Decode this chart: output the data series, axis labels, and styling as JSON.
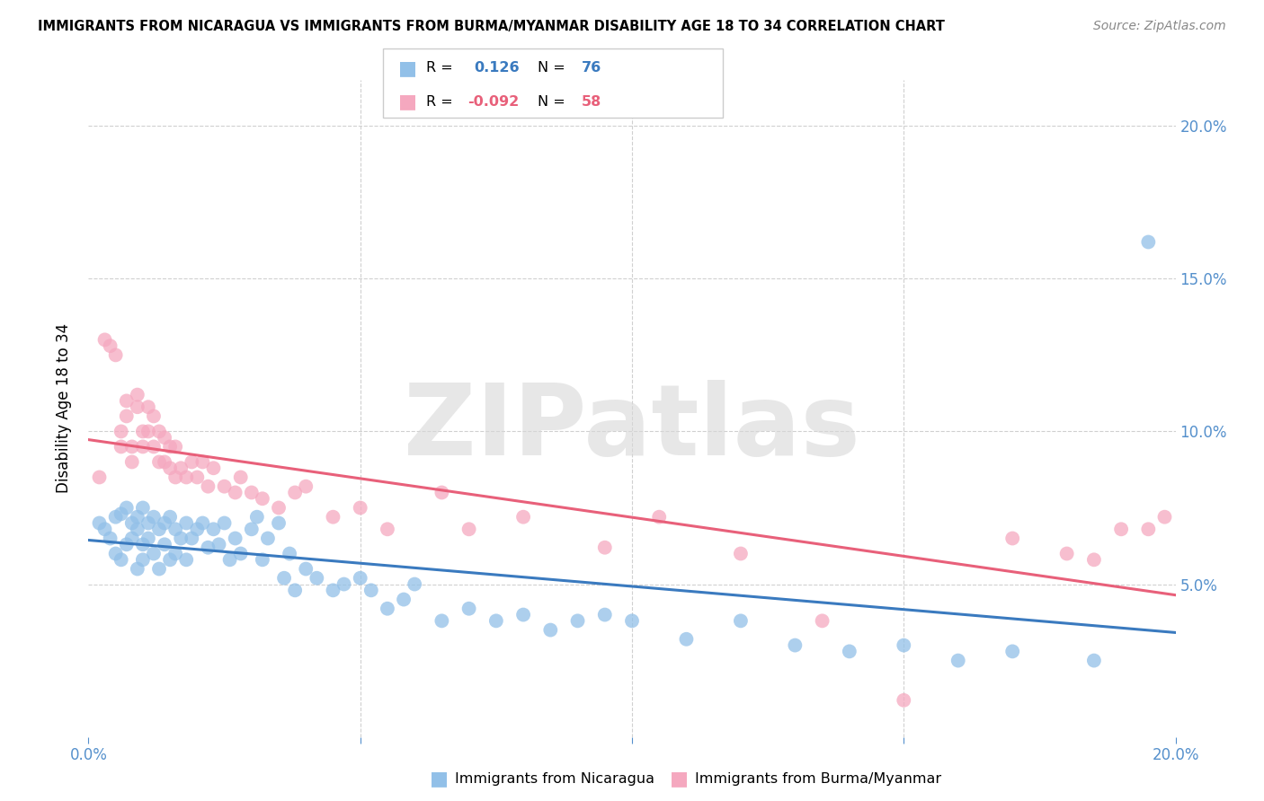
{
  "title": "IMMIGRANTS FROM NICARAGUA VS IMMIGRANTS FROM BURMA/MYANMAR DISABILITY AGE 18 TO 34 CORRELATION CHART",
  "source": "Source: ZipAtlas.com",
  "ylabel": "Disability Age 18 to 34",
  "xlim": [
    0.0,
    0.2
  ],
  "ylim": [
    0.0,
    0.215
  ],
  "blue_color": "#92c0e8",
  "pink_color": "#f5a8bf",
  "blue_line_color": "#3a7abf",
  "pink_line_color": "#e8607a",
  "label_nicaragua": "Immigrants from Nicaragua",
  "label_burma": "Immigrants from Burma/Myanmar",
  "watermark": "ZIPatlas",
  "blue_R": 0.126,
  "blue_N": 76,
  "pink_R": -0.092,
  "pink_N": 58,
  "blue_scatter_x": [
    0.002,
    0.003,
    0.004,
    0.005,
    0.005,
    0.006,
    0.006,
    0.007,
    0.007,
    0.008,
    0.008,
    0.009,
    0.009,
    0.009,
    0.01,
    0.01,
    0.01,
    0.011,
    0.011,
    0.012,
    0.012,
    0.013,
    0.013,
    0.014,
    0.014,
    0.015,
    0.015,
    0.016,
    0.016,
    0.017,
    0.018,
    0.018,
    0.019,
    0.02,
    0.021,
    0.022,
    0.023,
    0.024,
    0.025,
    0.026,
    0.027,
    0.028,
    0.03,
    0.031,
    0.032,
    0.033,
    0.035,
    0.036,
    0.037,
    0.038,
    0.04,
    0.042,
    0.045,
    0.047,
    0.05,
    0.052,
    0.055,
    0.058,
    0.06,
    0.065,
    0.07,
    0.075,
    0.08,
    0.085,
    0.09,
    0.095,
    0.1,
    0.11,
    0.12,
    0.13,
    0.14,
    0.15,
    0.16,
    0.17,
    0.185,
    0.195
  ],
  "blue_scatter_y": [
    0.07,
    0.068,
    0.065,
    0.072,
    0.06,
    0.073,
    0.058,
    0.075,
    0.063,
    0.07,
    0.065,
    0.068,
    0.055,
    0.072,
    0.075,
    0.063,
    0.058,
    0.07,
    0.065,
    0.072,
    0.06,
    0.068,
    0.055,
    0.07,
    0.063,
    0.072,
    0.058,
    0.068,
    0.06,
    0.065,
    0.07,
    0.058,
    0.065,
    0.068,
    0.07,
    0.062,
    0.068,
    0.063,
    0.07,
    0.058,
    0.065,
    0.06,
    0.068,
    0.072,
    0.058,
    0.065,
    0.07,
    0.052,
    0.06,
    0.048,
    0.055,
    0.052,
    0.048,
    0.05,
    0.052,
    0.048,
    0.042,
    0.045,
    0.05,
    0.038,
    0.042,
    0.038,
    0.04,
    0.035,
    0.038,
    0.04,
    0.038,
    0.032,
    0.038,
    0.03,
    0.028,
    0.03,
    0.025,
    0.028,
    0.025,
    0.162
  ],
  "pink_scatter_x": [
    0.002,
    0.003,
    0.004,
    0.005,
    0.006,
    0.006,
    0.007,
    0.007,
    0.008,
    0.008,
    0.009,
    0.009,
    0.01,
    0.01,
    0.011,
    0.011,
    0.012,
    0.012,
    0.013,
    0.013,
    0.014,
    0.014,
    0.015,
    0.015,
    0.016,
    0.016,
    0.017,
    0.018,
    0.019,
    0.02,
    0.021,
    0.022,
    0.023,
    0.025,
    0.027,
    0.028,
    0.03,
    0.032,
    0.035,
    0.038,
    0.04,
    0.045,
    0.05,
    0.055,
    0.065,
    0.07,
    0.08,
    0.095,
    0.105,
    0.12,
    0.135,
    0.15,
    0.17,
    0.18,
    0.185,
    0.19,
    0.195,
    0.198
  ],
  "pink_scatter_y": [
    0.085,
    0.13,
    0.128,
    0.125,
    0.1,
    0.095,
    0.11,
    0.105,
    0.095,
    0.09,
    0.112,
    0.108,
    0.1,
    0.095,
    0.108,
    0.1,
    0.105,
    0.095,
    0.1,
    0.09,
    0.098,
    0.09,
    0.095,
    0.088,
    0.095,
    0.085,
    0.088,
    0.085,
    0.09,
    0.085,
    0.09,
    0.082,
    0.088,
    0.082,
    0.08,
    0.085,
    0.08,
    0.078,
    0.075,
    0.08,
    0.082,
    0.072,
    0.075,
    0.068,
    0.08,
    0.068,
    0.072,
    0.062,
    0.072,
    0.06,
    0.038,
    0.012,
    0.065,
    0.06,
    0.058,
    0.068,
    0.068,
    0.072
  ]
}
